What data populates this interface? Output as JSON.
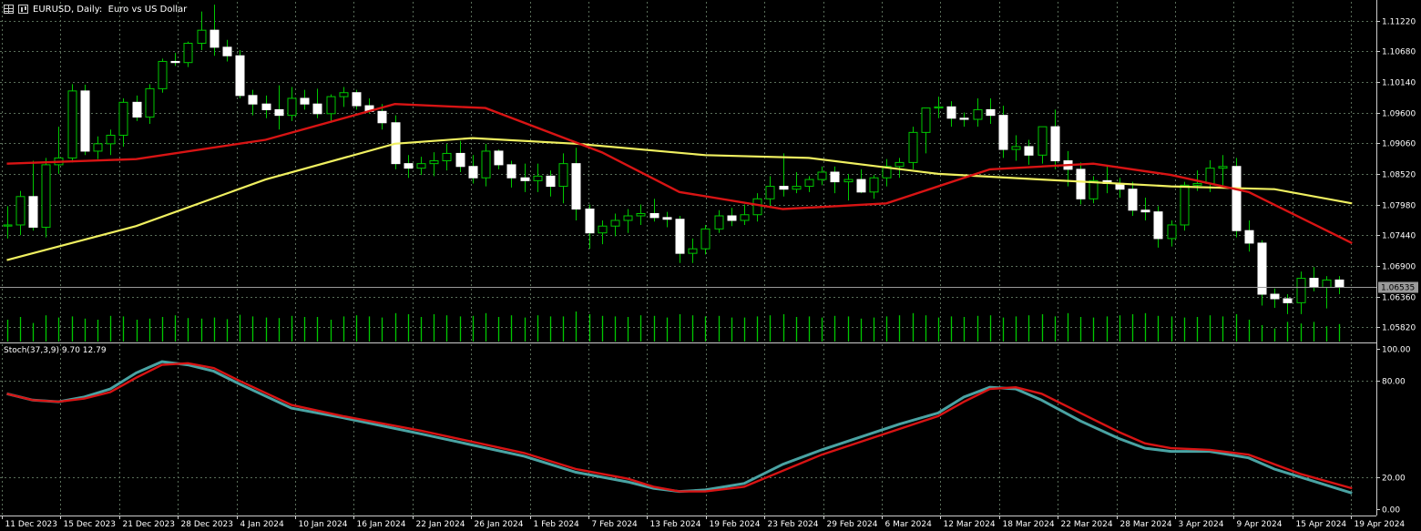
{
  "header": {
    "symbol_title": "EURUSD, Daily:",
    "symbol_desc": "Euro vs US Dollar"
  },
  "price_axis": {
    "labels": [
      "1.11220",
      "1.10680",
      "1.10140",
      "1.09600",
      "1.09060",
      "1.08520",
      "1.07980",
      "1.07440",
      "1.06900",
      "1.06360",
      "1.05820"
    ],
    "current_price": "1.06535"
  },
  "stoch": {
    "label": "Stoch(37,3,9) 9.70 12.79",
    "axis_labels": [
      "100.00",
      "80.00",
      "20.00",
      "0.00"
    ]
  },
  "time_axis": {
    "labels": [
      "11 Dec 2023",
      "15 Dec 2023",
      "21 Dec 2023",
      "28 Dec 2023",
      "4 Jan 2024",
      "10 Jan 2024",
      "16 Jan 2024",
      "22 Jan 2024",
      "26 Jan 2024",
      "1 Feb 2024",
      "7 Feb 2024",
      "13 Feb 2024",
      "19 Feb 2024",
      "23 Feb 2024",
      "29 Feb 2024",
      "6 Mar 2024",
      "12 Mar 2024",
      "18 Mar 2024",
      "22 Mar 2024",
      "28 Mar 2024",
      "3 Apr 2024",
      "9 Apr 2024",
      "15 Apr 2024",
      "19 Apr 2024"
    ]
  },
  "colors": {
    "background": "#000000",
    "grid": "#5a6e5a",
    "bull_candle": "#ffffff",
    "bear_candle": "#000000",
    "wick": "#00c800",
    "volume": "#00c800",
    "ma_fast": "#d81414",
    "ma_slow": "#f0f060",
    "stoch_main": "#4aa3a3",
    "stoch_signal": "#d81414",
    "text": "#ffffff"
  },
  "chart_data": [
    {
      "type": "candlestick",
      "title": "EURUSD, Daily: Euro vs US Dollar",
      "ylim": [
        1.0555,
        1.1155
      ],
      "candles": [
        [
          1.076,
          1.0795,
          1.0738,
          1.0762
        ],
        [
          1.0762,
          1.0822,
          1.0744,
          1.0812
        ],
        [
          1.0812,
          1.0875,
          1.0752,
          1.0758
        ],
        [
          1.0758,
          1.088,
          1.074,
          1.0868
        ],
        [
          1.0868,
          1.0935,
          1.0852,
          1.088
        ],
        [
          1.088,
          1.101,
          1.0872,
          1.0998
        ],
        [
          1.0998,
          1.1009,
          1.0885,
          1.0892
        ],
        [
          1.0892,
          1.0918,
          1.0878,
          1.0905
        ],
        [
          1.0905,
          1.093,
          1.0885,
          1.092
        ],
        [
          1.092,
          1.0985,
          1.09,
          1.0978
        ],
        [
          1.0978,
          1.099,
          1.0945,
          1.0952
        ],
        [
          1.0952,
          1.101,
          1.094,
          1.1002
        ],
        [
          1.1002,
          1.1055,
          1.0995,
          1.105
        ],
        [
          1.105,
          1.1065,
          1.1042,
          1.1048
        ],
        [
          1.1048,
          1.1085,
          1.104,
          1.1082
        ],
        [
          1.1082,
          1.1138,
          1.107,
          1.1105
        ],
        [
          1.1105,
          1.115,
          1.106,
          1.1075
        ],
        [
          1.1075,
          1.1088,
          1.105,
          1.106
        ],
        [
          1.106,
          1.107,
          1.0985,
          1.099
        ],
        [
          1.099,
          1.1,
          1.0955,
          1.0975
        ],
        [
          1.0975,
          1.099,
          1.095,
          1.0965
        ],
        [
          1.0965,
          1.1008,
          1.093,
          1.0955
        ],
        [
          1.0955,
          1.1005,
          1.0945,
          1.0985
        ],
        [
          1.0985,
          1.1,
          1.0965,
          1.0975
        ],
        [
          1.0975,
          1.1002,
          1.095,
          1.0958
        ],
        [
          1.0958,
          1.0992,
          1.0942,
          1.0988
        ],
        [
          1.0988,
          1.1005,
          1.097,
          1.0995
        ],
        [
          1.0995,
          1.1,
          1.0965,
          1.0972
        ],
        [
          1.0972,
          1.0985,
          1.0958,
          1.0962
        ],
        [
          1.0962,
          1.0975,
          1.093,
          1.0942
        ],
        [
          1.0942,
          1.0955,
          1.086,
          1.087
        ],
        [
          1.087,
          1.0885,
          1.0845,
          1.0862
        ],
        [
          1.0862,
          1.0882,
          1.085,
          1.087
        ],
        [
          1.087,
          1.089,
          1.0848,
          1.0875
        ],
        [
          1.0875,
          1.0905,
          1.0858,
          1.0888
        ],
        [
          1.0888,
          1.091,
          1.0855,
          1.0865
        ],
        [
          1.0865,
          1.0885,
          1.0835,
          1.0845
        ],
        [
          1.0845,
          1.0905,
          1.083,
          1.0892
        ],
        [
          1.0892,
          1.0895,
          1.086,
          1.0868
        ],
        [
          1.0868,
          1.0875,
          1.0828,
          1.0845
        ],
        [
          1.0845,
          1.087,
          1.082,
          1.084
        ],
        [
          1.084,
          1.087,
          1.082,
          1.0848
        ],
        [
          1.0848,
          1.0858,
          1.0812,
          1.083
        ],
        [
          1.083,
          1.0888,
          1.08,
          1.087
        ],
        [
          1.087,
          1.0898,
          1.077,
          1.079
        ],
        [
          1.079,
          1.0798,
          1.072,
          1.0748
        ],
        [
          1.0748,
          1.077,
          1.0728,
          1.076
        ],
        [
          1.076,
          1.0782,
          1.0742,
          1.077
        ],
        [
          1.077,
          1.079,
          1.0748,
          1.0778
        ],
        [
          1.0778,
          1.0798,
          1.0762,
          1.0782
        ],
        [
          1.0782,
          1.0808,
          1.0768,
          1.0775
        ],
        [
          1.0775,
          1.0785,
          1.0758,
          1.0772
        ],
        [
          1.0772,
          1.0778,
          1.0695,
          1.0712
        ],
        [
          1.0712,
          1.0738,
          1.0695,
          1.072
        ],
        [
          1.072,
          1.0762,
          1.071,
          1.0755
        ],
        [
          1.0755,
          1.0788,
          1.0748,
          1.0778
        ],
        [
          1.0778,
          1.0792,
          1.076,
          1.077
        ],
        [
          1.077,
          1.0798,
          1.0762,
          1.078
        ],
        [
          1.078,
          1.0818,
          1.0768,
          1.0808
        ],
        [
          1.0808,
          1.0848,
          1.0795,
          1.083
        ],
        [
          1.083,
          1.0888,
          1.0812,
          1.0825
        ],
        [
          1.0825,
          1.0855,
          1.0818,
          1.083
        ],
        [
          1.083,
          1.0848,
          1.082,
          1.0842
        ],
        [
          1.0842,
          1.0865,
          1.0832,
          1.0855
        ],
        [
          1.0855,
          1.0865,
          1.0818,
          1.0838
        ],
        [
          1.0838,
          1.0852,
          1.0805,
          1.0842
        ],
        [
          1.0842,
          1.086,
          1.0818,
          1.082
        ],
        [
          1.082,
          1.085,
          1.0808,
          1.0845
        ],
        [
          1.0845,
          1.0878,
          1.083,
          1.0865
        ],
        [
          1.0865,
          1.088,
          1.0845,
          1.0872
        ],
        [
          1.0872,
          1.0935,
          1.086,
          1.0925
        ],
        [
          1.0925,
          1.0968,
          1.0888,
          1.0968
        ],
        [
          1.0968,
          1.0988,
          1.095,
          1.097
        ],
        [
          1.097,
          1.098,
          1.0935,
          1.095
        ],
        [
          1.095,
          1.096,
          1.0935,
          1.0948
        ],
        [
          1.0948,
          1.0985,
          1.0935,
          1.0965
        ],
        [
          1.0965,
          1.0985,
          1.094,
          1.0955
        ],
        [
          1.0955,
          1.0972,
          1.088,
          1.0895
        ],
        [
          1.0895,
          1.092,
          1.0875,
          1.09
        ],
        [
          1.09,
          1.0912,
          1.0868,
          1.0885
        ],
        [
          1.0885,
          1.0935,
          1.087,
          1.0935
        ],
        [
          1.0935,
          1.0965,
          1.086,
          1.0875
        ],
        [
          1.0875,
          1.0892,
          1.083,
          1.086
        ],
        [
          1.086,
          1.0872,
          1.0798,
          1.0808
        ],
        [
          1.0808,
          1.0848,
          1.08,
          1.084
        ],
        [
          1.084,
          1.0865,
          1.0818,
          1.0835
        ],
        [
          1.0835,
          1.0845,
          1.081,
          1.0825
        ],
        [
          1.0825,
          1.0838,
          1.0778,
          1.0788
        ],
        [
          1.0788,
          1.081,
          1.077,
          1.0785
        ],
        [
          1.0785,
          1.0795,
          1.0722,
          1.0738
        ],
        [
          1.0738,
          1.077,
          1.0724,
          1.0762
        ],
        [
          1.0762,
          1.0838,
          1.0752,
          1.0832
        ],
        [
          1.0832,
          1.0858,
          1.0822,
          1.0835
        ],
        [
          1.0835,
          1.0876,
          1.082,
          1.0862
        ],
        [
          1.0862,
          1.0885,
          1.0832,
          1.0865
        ],
        [
          1.0865,
          1.088,
          1.074,
          1.0752
        ],
        [
          1.0752,
          1.077,
          1.0715,
          1.073
        ],
        [
          1.073,
          1.0735,
          1.062,
          1.064
        ],
        [
          1.064,
          1.065,
          1.0616,
          1.0632
        ],
        [
          1.0632,
          1.064,
          1.0605,
          1.0625
        ],
        [
          1.0625,
          1.068,
          1.0605,
          1.0668
        ],
        [
          1.0668,
          1.0688,
          1.0645,
          1.0652
        ],
        [
          1.0652,
          1.0672,
          1.0615,
          1.0665
        ],
        [
          1.0665,
          1.0672,
          1.064,
          1.0653
        ]
      ],
      "ma_fast_points": [
        [
          0,
          1.087
        ],
        [
          10,
          1.0878
        ],
        [
          20,
          1.0912
        ],
        [
          30,
          1.0975
        ],
        [
          37,
          1.0968
        ],
        [
          46,
          1.089
        ],
        [
          52,
          1.082
        ],
        [
          60,
          1.079
        ],
        [
          68,
          1.08
        ],
        [
          76,
          1.086
        ],
        [
          84,
          1.087
        ],
        [
          90,
          1.085
        ],
        [
          96,
          1.082
        ],
        [
          104,
          1.073
        ]
      ],
      "ma_slow_points": [
        [
          0,
          1.07
        ],
        [
          10,
          1.076
        ],
        [
          20,
          1.0842
        ],
        [
          30,
          1.0905
        ],
        [
          36,
          1.0915
        ],
        [
          44,
          1.0905
        ],
        [
          54,
          1.0885
        ],
        [
          62,
          1.088
        ],
        [
          72,
          1.0852
        ],
        [
          80,
          1.0842
        ],
        [
          90,
          1.083
        ],
        [
          98,
          1.0825
        ],
        [
          104,
          1.08
        ]
      ],
      "volume": [
        40,
        45,
        34,
        48,
        44,
        46,
        42,
        40,
        47,
        46,
        40,
        42,
        45,
        48,
        43,
        42,
        44,
        41,
        49,
        46,
        44,
        43,
        47,
        45,
        45,
        40,
        46,
        48,
        46,
        44,
        52,
        50,
        45,
        50,
        48,
        46,
        47,
        52,
        45,
        48,
        44,
        48,
        46,
        46,
        55,
        50,
        47,
        46,
        45,
        48,
        47,
        44,
        50,
        48,
        46,
        47,
        44,
        44,
        46,
        48,
        50,
        45,
        46,
        44,
        47,
        46,
        42,
        44,
        46,
        48,
        52,
        48,
        44,
        46,
        45,
        47,
        48,
        44,
        46,
        48,
        50,
        46,
        52,
        45,
        44,
        46,
        48,
        50,
        52,
        47,
        46,
        44,
        45,
        48,
        46,
        50,
        40,
        30,
        24,
        36,
        33,
        36,
        28,
        32
      ]
    },
    {
      "type": "line",
      "title": "Stoch(37,3,9) 9.70 12.79",
      "ylim": [
        0,
        100
      ],
      "series": [
        {
          "values": [
            [
              0,
              72
            ],
            [
              2,
              68
            ],
            [
              4,
              67
            ],
            [
              6,
              70
            ],
            [
              8,
              75
            ],
            [
              10,
              85
            ],
            [
              12,
              92
            ],
            [
              14,
              90
            ],
            [
              16,
              86
            ],
            [
              18,
              78
            ],
            [
              22,
              63
            ],
            [
              26,
              57
            ],
            [
              32,
              47
            ],
            [
              36,
              40
            ],
            [
              40,
              33
            ],
            [
              44,
              23
            ],
            [
              48,
              17
            ],
            [
              50,
              13
            ],
            [
              52,
              11
            ],
            [
              54,
              12
            ],
            [
              57,
              16
            ],
            [
              60,
              28
            ],
            [
              63,
              37
            ],
            [
              66,
              45
            ],
            [
              69,
              53
            ],
            [
              72,
              60
            ],
            [
              74,
              70
            ],
            [
              76,
              76
            ],
            [
              78,
              75
            ],
            [
              80,
              68
            ],
            [
              83,
              55
            ],
            [
              86,
              44
            ],
            [
              88,
              38
            ],
            [
              90,
              36
            ],
            [
              93,
              36
            ],
            [
              96,
              32
            ],
            [
              98,
              25
            ],
            [
              100,
              20
            ],
            [
              104,
              10
            ]
          ]
        },
        {
          "values": [
            [
              0,
              72
            ],
            [
              2,
              68
            ],
            [
              4,
              67
            ],
            [
              6,
              69
            ],
            [
              8,
              73
            ],
            [
              10,
              82
            ],
            [
              12,
              90
            ],
            [
              14,
              91
            ],
            [
              16,
              88
            ],
            [
              18,
              80
            ],
            [
              22,
              65
            ],
            [
              26,
              58
            ],
            [
              32,
              49
            ],
            [
              36,
              42
            ],
            [
              40,
              35
            ],
            [
              44,
              25
            ],
            [
              48,
              19
            ],
            [
              50,
              14
            ],
            [
              52,
              11
            ],
            [
              54,
              11
            ],
            [
              57,
              14
            ],
            [
              60,
              24
            ],
            [
              63,
              34
            ],
            [
              66,
              42
            ],
            [
              69,
              50
            ],
            [
              72,
              58
            ],
            [
              74,
              67
            ],
            [
              76,
              75
            ],
            [
              78,
              76
            ],
            [
              80,
              72
            ],
            [
              83,
              60
            ],
            [
              86,
              48
            ],
            [
              88,
              41
            ],
            [
              90,
              38
            ],
            [
              93,
              37
            ],
            [
              96,
              34
            ],
            [
              98,
              28
            ],
            [
              100,
              22
            ],
            [
              104,
              13
            ]
          ]
        }
      ]
    }
  ]
}
